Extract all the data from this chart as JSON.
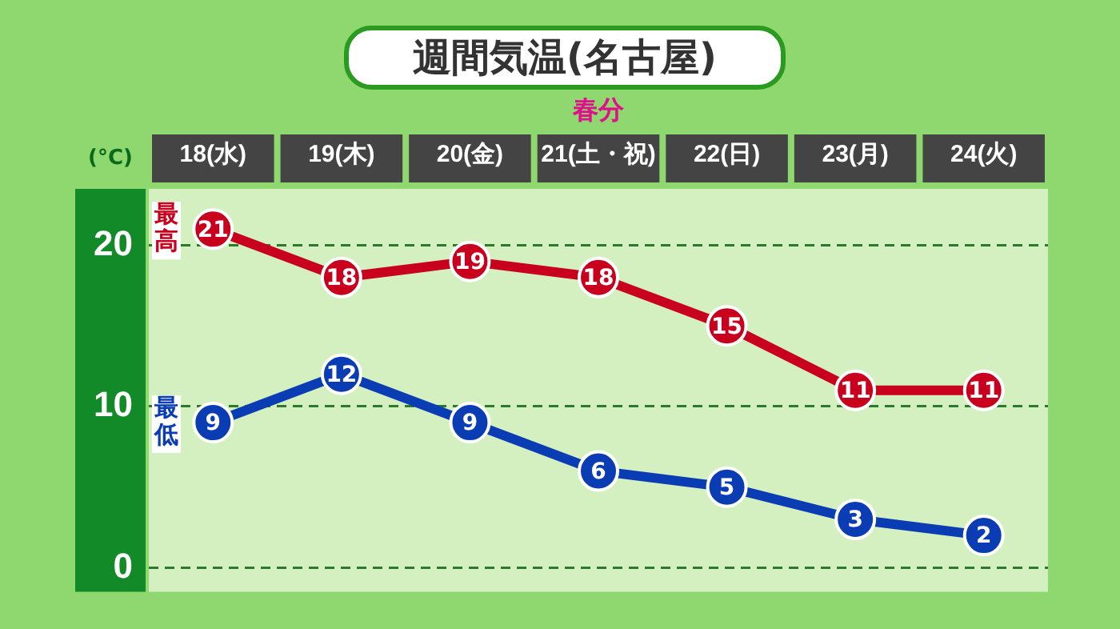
{
  "chart_data": {
    "type": "line",
    "title": "週間気温(名古屋)",
    "ylabel": "(°C)",
    "categories": [
      "18(水)",
      "19(木)",
      "20(金)",
      "21(土・祝)",
      "22(日)",
      "23(月)",
      "24(火)"
    ],
    "series": [
      {
        "name": "最高",
        "color": "#c8001e",
        "values": [
          21,
          18,
          19,
          18,
          15,
          11,
          11
        ]
      },
      {
        "name": "最低",
        "color": "#0a3cb4",
        "values": [
          9,
          12,
          9,
          6,
          5,
          3,
          2
        ]
      }
    ],
    "annotations": [
      "春分"
    ],
    "ylim": [
      -1.5,
      23.5
    ],
    "yticks": [
      0,
      10,
      20
    ],
    "grid": "y",
    "line_style": "solid",
    "marker": "circle",
    "data_labels": true,
    "legend": false
  }
}
